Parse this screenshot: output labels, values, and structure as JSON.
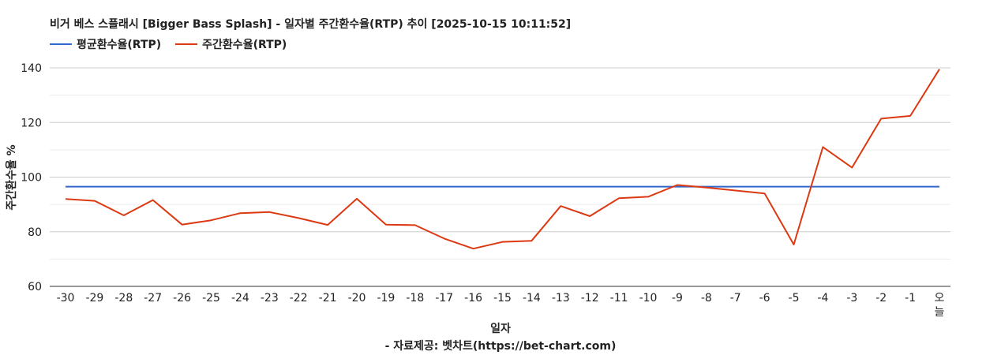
{
  "chart_data": {
    "type": "line",
    "title": "비거 베스 스플래시 [Bigger Bass Splash] - 일자별 주간환수율(RTP) 추이 [2025-10-15 10:11:52]",
    "xlabel": "일자",
    "ylabel": "주간환수율 %",
    "source": "- 자료제공: 벳차트(https://bet-chart.com)",
    "ylim": [
      60,
      140
    ],
    "yticks": [
      "60",
      "80",
      "100",
      "120",
      "140"
    ],
    "grid": true,
    "legend_position": "top-left",
    "categories": [
      "-30",
      "-29",
      "-28",
      "-27",
      "-26",
      "-25",
      "-24",
      "-23",
      "-22",
      "-21",
      "-20",
      "-19",
      "-18",
      "-17",
      "-16",
      "-15",
      "-14",
      "-13",
      "-12",
      "-11",
      "-10",
      "-9",
      "-8",
      "-7",
      "-6",
      "-5",
      "-4",
      "-3",
      "-2",
      "-1",
      "오늘"
    ],
    "series": [
      {
        "name": "평균환수율(RTP)",
        "color": "#3366cc",
        "values": [
          96.5,
          96.5,
          96.5,
          96.5,
          96.5,
          96.5,
          96.5,
          96.5,
          96.5,
          96.5,
          96.5,
          96.5,
          96.5,
          96.5,
          96.5,
          96.5,
          96.5,
          96.5,
          96.5,
          96.5,
          96.5,
          96.5,
          96.5,
          96.5,
          96.5,
          96.5,
          96.5,
          96.5,
          96.5,
          96.5,
          96.5
        ]
      },
      {
        "name": "주간환수율(RTP)",
        "color": "#dc3912",
        "values": [
          92.0,
          91.3,
          86.0,
          91.6,
          82.6,
          84.2,
          86.8,
          87.2,
          85.0,
          82.5,
          92.1,
          82.6,
          82.4,
          77.5,
          73.8,
          76.3,
          76.7,
          89.4,
          85.7,
          92.3,
          92.8,
          97.1,
          96.2,
          95.1,
          94.0,
          75.3,
          111.0,
          103.5,
          121.4,
          122.4,
          139.5
        ]
      }
    ]
  }
}
